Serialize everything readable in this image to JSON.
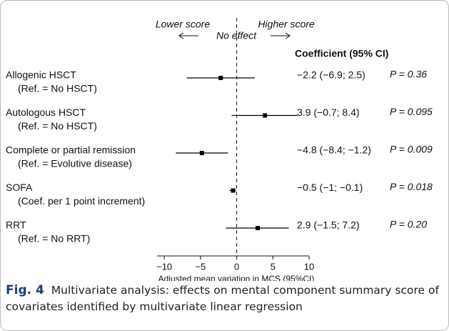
{
  "chart_data": {
    "type": "forest",
    "annotations": {
      "lower": "Lower score",
      "higher": "Higher score",
      "no_effect": "No effect"
    },
    "column_header": "Coefficient (95% CI)",
    "xlabel": "Adjusted mean variation in MCS (95%CI)",
    "xlim": [
      -11,
      10
    ],
    "xticks": [
      {
        "value": -10,
        "label": "−10"
      },
      {
        "value": -5,
        "label": "−5"
      },
      0,
      5,
      10
    ],
    "reference": 0,
    "color": "#000000",
    "rows": [
      {
        "label": "Allogenic HSCT",
        "sublabel": "(Ref. = No HSCT)",
        "estimate": -2.2,
        "lower": -6.9,
        "upper": 2.5,
        "value_label": "−2.2 (−6.9; 2.5)",
        "p_label": "P = 0.36"
      },
      {
        "label": "Autologous HSCT",
        "sublabel": "(Ref. = No HSCT)",
        "estimate": 3.9,
        "lower": -0.7,
        "upper": 8.4,
        "value_label": "3.9 (−0.7; 8.4)",
        "p_label": "P = 0.095"
      },
      {
        "label": "Complete or partial remission",
        "sublabel": "(Ref. = Evolutive disease)",
        "estimate": -4.8,
        "lower": -8.4,
        "upper": -1.2,
        "value_label": "−4.8 (−8.4; −1.2)",
        "p_label": "P = 0.009"
      },
      {
        "label": "SOFA",
        "sublabel": "(Coef. per 1 point increment)",
        "estimate": -0.5,
        "lower": -1,
        "upper": -0.1,
        "value_label": "−0.5 (−1; −0.1)",
        "p_label": "P = 0.018"
      },
      {
        "label": "RRT",
        "sublabel": "(Ref. = No RRT)",
        "estimate": 2.9,
        "lower": -1.5,
        "upper": 7.2,
        "value_label": "2.9 (−1.5; 7.2)",
        "p_label": "P = 0.20"
      }
    ]
  },
  "caption": {
    "label": "Fig. 4",
    "text": "Multivariate analysis: effects on mental component summary score of covariates identified by multivariate linear regression"
  }
}
